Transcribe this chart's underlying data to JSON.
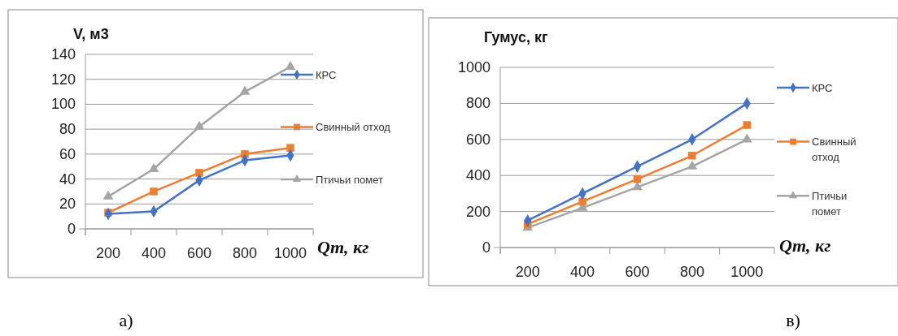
{
  "chart_data": [
    {
      "type": "line",
      "ylabel": "V, м3",
      "xlabel": "Qm, кг",
      "categories": [
        "200",
        "400",
        "600",
        "800",
        "1000"
      ],
      "ylim": [
        0,
        140
      ],
      "yticks": [
        0,
        20,
        40,
        60,
        80,
        100,
        120,
        140
      ],
      "grid": "y",
      "legend": "right",
      "annotations": [
        "а)"
      ],
      "series": [
        {
          "name": "КРС",
          "color": "#4472c4",
          "marker": "diamond",
          "values": [
            12,
            14,
            39,
            55,
            59
          ]
        },
        {
          "name": "Свинный отход",
          "color": "#ed7d31",
          "marker": "square",
          "values": [
            13,
            30,
            45,
            60,
            65
          ]
        },
        {
          "name": "Птичьи помет",
          "color": "#a5a5a5",
          "marker": "triangle",
          "values": [
            26,
            48,
            82,
            110,
            130
          ]
        }
      ]
    },
    {
      "type": "line",
      "ylabel": "Гумус, кг",
      "xlabel": "Qm, кг",
      "categories": [
        "200",
        "400",
        "600",
        "800",
        "1000"
      ],
      "ylim": [
        0,
        1000
      ],
      "yticks": [
        0,
        200,
        400,
        600,
        800,
        1000
      ],
      "grid": "y",
      "legend": "right",
      "annotations": [
        "в)"
      ],
      "series": [
        {
          "name": "КРС",
          "color": "#4472c4",
          "marker": "diamond",
          "values": [
            150,
            300,
            450,
            600,
            800
          ]
        },
        {
          "name": "Свинный отход",
          "color": "#ed7d31",
          "marker": "square",
          "values": [
            130,
            255,
            380,
            510,
            680
          ]
        },
        {
          "name": "Птичьи помет",
          "color": "#a5a5a5",
          "marker": "triangle",
          "values": [
            110,
            220,
            335,
            450,
            600
          ]
        }
      ]
    }
  ]
}
